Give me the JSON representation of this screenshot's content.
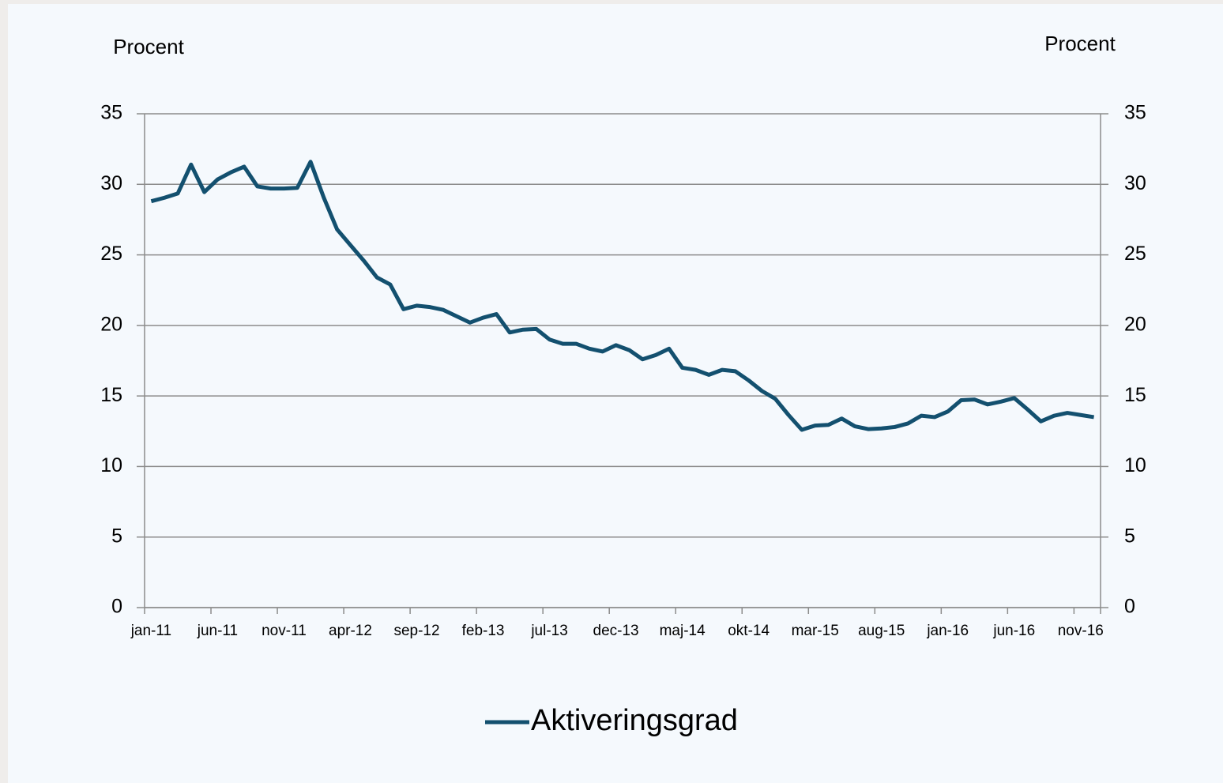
{
  "chart_data": {
    "type": "line",
    "y_label": "Procent",
    "y2_label": "Procent",
    "categories": [
      "jan-11",
      null,
      null,
      null,
      null,
      "jun-11",
      null,
      null,
      null,
      null,
      "nov-11",
      null,
      null,
      null,
      null,
      "apr-12",
      null,
      null,
      null,
      null,
      "sep-12",
      null,
      null,
      null,
      null,
      "feb-13",
      null,
      null,
      null,
      null,
      "jul-13",
      null,
      null,
      null,
      null,
      "dec-13",
      null,
      null,
      null,
      null,
      "maj-14",
      null,
      null,
      null,
      null,
      "okt-14",
      null,
      null,
      null,
      null,
      "mar-15",
      null,
      null,
      null,
      null,
      "aug-15",
      null,
      null,
      null,
      null,
      "jan-16",
      null,
      null,
      null,
      null,
      "jun-16",
      null,
      null,
      null,
      null,
      "nov-16",
      null
    ],
    "series": [
      {
        "name": "Aktiveringsgrad",
        "color": "#13506f",
        "values": [
          28.8,
          29.05,
          29.35,
          31.4,
          29.45,
          30.35,
          30.85,
          31.25,
          29.85,
          29.7,
          29.7,
          29.75,
          31.6,
          29.05,
          26.8,
          25.7,
          24.6,
          23.4,
          22.9,
          21.15,
          21.4,
          21.3,
          21.1,
          20.65,
          20.2,
          20.55,
          20.8,
          19.5,
          19.7,
          19.75,
          19.0,
          18.7,
          18.7,
          18.35,
          18.15,
          18.6,
          18.25,
          17.6,
          17.9,
          18.35,
          17.0,
          16.85,
          16.5,
          16.85,
          16.75,
          16.1,
          15.35,
          14.8,
          13.65,
          12.6,
          12.9,
          12.95,
          13.4,
          12.85,
          12.65,
          12.7,
          12.8,
          13.05,
          13.6,
          13.5,
          13.9,
          14.7,
          14.75,
          14.4,
          14.6,
          14.85,
          14.05,
          13.2,
          13.6,
          13.8,
          13.65,
          13.5
        ]
      }
    ],
    "ylim": [
      0,
      35
    ],
    "yticks": [
      0,
      5,
      10,
      15,
      20,
      25,
      30,
      35
    ],
    "y2lim": [
      0,
      35
    ],
    "y2ticks": [
      0,
      5,
      10,
      15,
      20,
      25,
      30,
      35
    ],
    "grid": true,
    "legend": "bottom"
  }
}
